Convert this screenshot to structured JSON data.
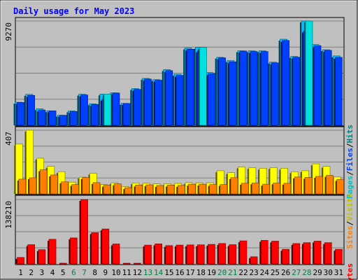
{
  "chart_data": {
    "type": "bar",
    "title": "Daily usage for May 2023",
    "days": [
      "1",
      "2",
      "3",
      "4",
      "5",
      "6",
      "7",
      "8",
      "9",
      "10",
      "11",
      "12",
      "13",
      "14",
      "15",
      "16",
      "17",
      "18",
      "19",
      "20",
      "21",
      "22",
      "23",
      "24",
      "25",
      "26",
      "27",
      "28",
      "29",
      "30",
      "31"
    ],
    "weekend_days": [
      "6",
      "7",
      "13",
      "14",
      "20",
      "21",
      "27",
      "28"
    ],
    "panels": [
      {
        "id": "hits",
        "ymax_label": "9270",
        "ymax": 9270,
        "legend": [
          "Pages",
          "Files",
          "Hits"
        ],
        "series": [
          {
            "name": "Hits",
            "values": [
              2050,
              2750,
              1470,
              1290,
              895,
              1280,
              2760,
              1910,
              2780,
              2890,
              1950,
              3270,
              4170,
              4060,
              4950,
              4540,
              6870,
              6930,
              4700,
              6040,
              5750,
              6620,
              6620,
              6620,
              5610,
              7650,
              6120,
              9270,
              7180,
              6720,
              6170
            ]
          },
          {
            "name": "Files",
            "values": [
              2030,
              2660,
              1360,
              1280,
              890,
              1230,
              2700,
              1860,
              2320,
              2870,
              1940,
              3190,
              4110,
              4010,
              4860,
              4440,
              6760,
              6620,
              4600,
              6000,
              5650,
              6600,
              6560,
              6560,
              5550,
              7540,
              6050,
              8370,
              7080,
              6660,
              6040
            ]
          },
          {
            "name": "Pages",
            "values": [
              0,
              0,
              0,
              0,
              0,
              0,
              0,
              0,
              2780,
              0,
              0,
              0,
              0,
              0,
              0,
              0,
              0,
              6930,
              0,
              0,
              0,
              0,
              0,
              0,
              0,
              0,
              0,
              9270,
              0,
              0,
              0
            ]
          }
        ]
      },
      {
        "id": "visits",
        "ymax_label": "407",
        "ymax": 407,
        "legend": [
          "Sites",
          "Visits"
        ],
        "series": [
          {
            "name": "Visits",
            "values": [
              318,
              407,
              228,
              176,
              142,
              75,
              107,
              132,
              60,
              71,
              47,
              70,
              68,
              64,
              65,
              67,
              72,
              71,
              71,
              148,
              136,
              172,
              168,
              164,
              168,
              164,
              142,
              148,
              192,
              176,
              108
            ]
          },
          {
            "name": "Sites",
            "values": [
              94,
              103,
              154,
              121,
              77,
              60,
              104,
              72,
              55,
              64,
              40,
              56,
              58,
              54,
              56,
              54,
              62,
              62,
              60,
              60,
              104,
              68,
              70,
              62,
              70,
              68,
              108,
              106,
              112,
              118,
              92
            ]
          }
        ]
      },
      {
        "id": "kbytes",
        "ymax_label": "138210",
        "ymax": 138210,
        "legend": [
          "KBytes"
        ],
        "series": [
          {
            "name": "KBytes",
            "values": [
              13900,
              41300,
              30500,
              52800,
              1600,
              55800,
              138210,
              67000,
              75000,
              42800,
              900,
              900,
              40400,
              43000,
              39300,
              40400,
              40800,
              41000,
              42000,
              43800,
              41300,
              49500,
              15300,
              50500,
              48900,
              31300,
              43700,
              45600,
              48900,
              45600,
              31300
            ]
          }
        ]
      }
    ],
    "colors": {
      "Hits": "#00c0ff",
      "Files": "#0040ff",
      "Pages": "#00e0e0",
      "Visits": "#ffff00",
      "Sites": "#ff8000",
      "KBytes": "#ff0000",
      "title": "#0000ff",
      "weekend_label": "#008040",
      "plot_bg": "#c0c0c0",
      "frame_bg": "#c0c0c0"
    }
  }
}
